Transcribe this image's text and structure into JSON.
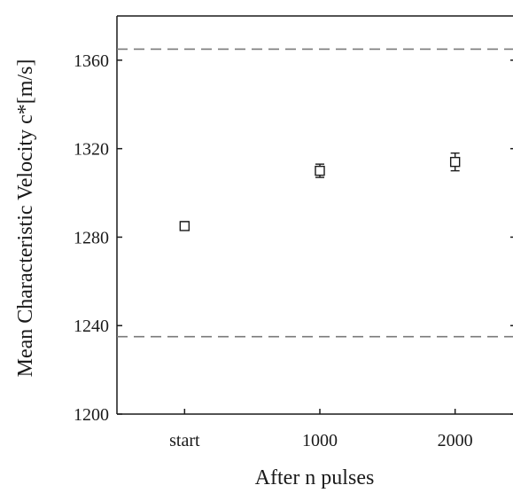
{
  "chart_data": {
    "type": "scatter",
    "title": "",
    "xlabel": "After n pulses",
    "ylabel": "Mean Characteristic Velocity c*[m/s]",
    "categories": [
      "start",
      "1000",
      "2000"
    ],
    "series": [
      {
        "values": [
          1285,
          1310,
          1314
        ],
        "error_low": [
          1284,
          1307,
          1310
        ],
        "error_high": [
          1287,
          1313,
          1318
        ],
        "marker": "square",
        "color": "#1a1a1a"
      }
    ],
    "reference_lines": [
      1365,
      1235
    ],
    "reference_line_style": "dashed",
    "reference_line_color": "#7a7a7a",
    "ylim": [
      1200,
      1380
    ],
    "yticks": [
      1200,
      1240,
      1280,
      1320,
      1360
    ],
    "ytick_labels": [
      "1200",
      "1240",
      "1280",
      "1320",
      "1360"
    ],
    "xlim": [
      0.5,
      3.5
    ],
    "grid": false,
    "legend": "none",
    "colors": {
      "axis": "#1a1a1a",
      "marker": "#1a1a1a",
      "reference": "#7a7a7a"
    }
  }
}
